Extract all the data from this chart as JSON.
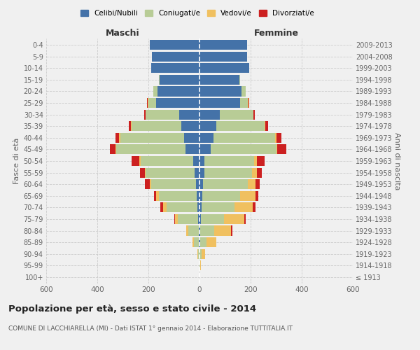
{
  "age_groups": [
    "100+",
    "95-99",
    "90-94",
    "85-89",
    "80-84",
    "75-79",
    "70-74",
    "65-69",
    "60-64",
    "55-59",
    "50-54",
    "45-49",
    "40-44",
    "35-39",
    "30-34",
    "25-29",
    "20-24",
    "15-19",
    "10-14",
    "5-9",
    "0-4"
  ],
  "birth_years": [
    "≤ 1913",
    "1914-1918",
    "1919-1923",
    "1924-1928",
    "1929-1933",
    "1934-1938",
    "1939-1943",
    "1944-1948",
    "1949-1953",
    "1954-1958",
    "1959-1963",
    "1964-1968",
    "1969-1973",
    "1974-1978",
    "1979-1983",
    "1984-1988",
    "1989-1993",
    "1994-1998",
    "1999-2003",
    "2004-2008",
    "2009-2013"
  ],
  "male": {
    "celibi": [
      0,
      0,
      0,
      2,
      3,
      5,
      8,
      10,
      15,
      20,
      25,
      55,
      60,
      70,
      80,
      170,
      165,
      155,
      190,
      185,
      195
    ],
    "coniugati": [
      0,
      0,
      5,
      20,
      40,
      80,
      120,
      150,
      175,
      190,
      205,
      270,
      250,
      195,
      130,
      30,
      15,
      5,
      0,
      0,
      0
    ],
    "vedovi": [
      0,
      1,
      2,
      5,
      10,
      10,
      15,
      10,
      5,
      5,
      5,
      5,
      5,
      3,
      2,
      2,
      2,
      0,
      0,
      0,
      0
    ],
    "divorziati": [
      0,
      0,
      0,
      0,
      0,
      5,
      10,
      8,
      20,
      18,
      30,
      20,
      15,
      10,
      5,
      3,
      0,
      0,
      0,
      0,
      0
    ]
  },
  "female": {
    "nubili": [
      0,
      0,
      0,
      2,
      3,
      5,
      8,
      10,
      15,
      20,
      20,
      45,
      55,
      65,
      80,
      160,
      165,
      155,
      195,
      185,
      185
    ],
    "coniugate": [
      0,
      2,
      8,
      25,
      55,
      90,
      130,
      150,
      175,
      185,
      195,
      255,
      240,
      190,
      130,
      30,
      15,
      5,
      0,
      0,
      0
    ],
    "vedove": [
      1,
      3,
      15,
      40,
      65,
      80,
      70,
      60,
      30,
      20,
      10,
      5,
      5,
      3,
      2,
      2,
      2,
      0,
      0,
      0,
      0
    ],
    "divorziate": [
      0,
      0,
      0,
      0,
      5,
      5,
      10,
      10,
      15,
      20,
      30,
      35,
      20,
      10,
      5,
      3,
      0,
      0,
      0,
      0,
      0
    ]
  },
  "colors": {
    "celibi": "#4472a8",
    "coniugati": "#b8cc96",
    "vedovi": "#f0c060",
    "divorziati": "#cc2020"
  },
  "xlim": 600,
  "title": "Popolazione per età, sesso e stato civile - 2014",
  "subtitle": "COMUNE DI LACCHIARELLA (MI) - Dati ISTAT 1° gennaio 2014 - Elaborazione TUTTITALIA.IT",
  "ylabel_left": "Fasce di età",
  "ylabel_right": "Anni di nascita",
  "xlabel_left": "Maschi",
  "xlabel_right": "Femmine",
  "legend_labels": [
    "Celibi/Nubili",
    "Coniugati/e",
    "Vedovi/e",
    "Divorziati/e"
  ],
  "bg_color": "#f0f0f0",
  "bar_height": 0.85
}
